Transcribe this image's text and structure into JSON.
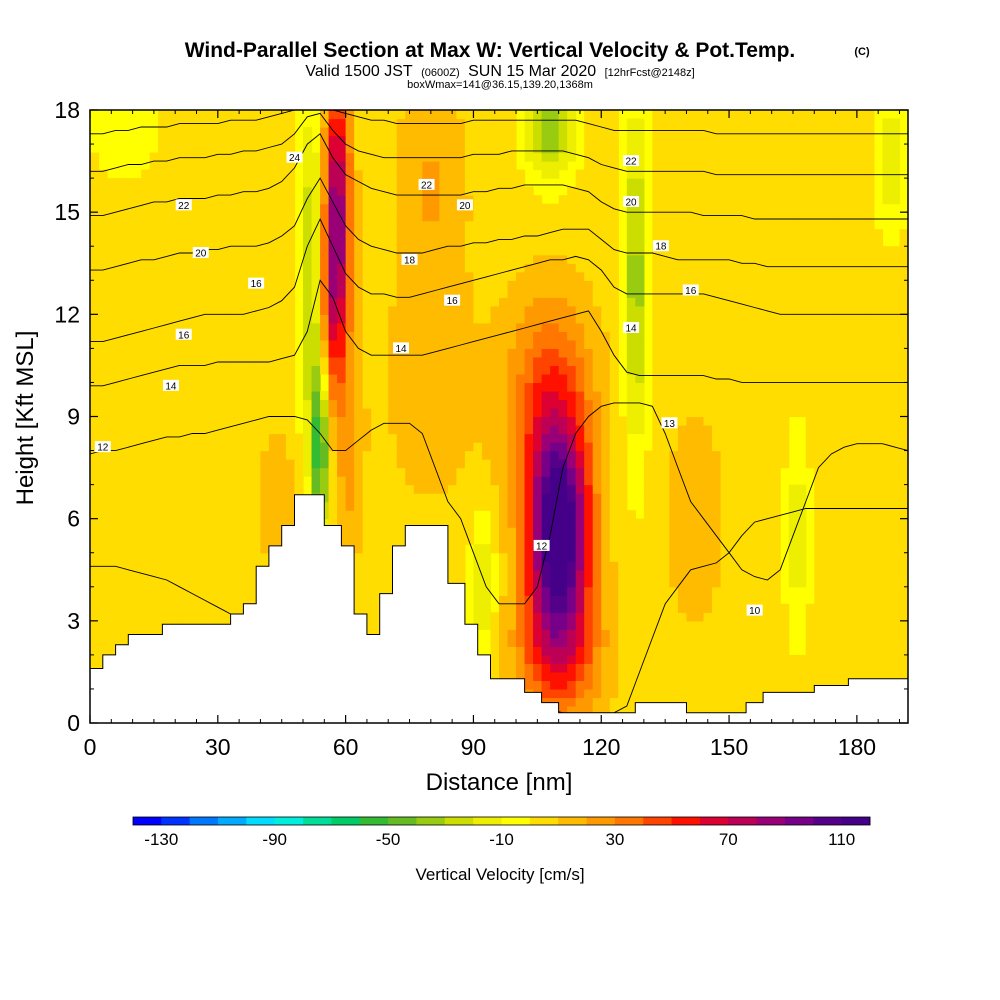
{
  "title": {
    "main": "Wind-Parallel Section at Max W: Vertical Velocity & Pot.Temp.",
    "copyright": "(C)",
    "valid_prefix": "Valid 1500 JST",
    "valid_utc": "(0600Z)",
    "valid_date": "SUN 15 Mar 2020",
    "forecast": "[12hrFcst@2148z]",
    "box_info": "boxWmax=141@36.15,139.20,1368m"
  },
  "chart_data": {
    "type": "heatmap",
    "xlabel": "Distance [nm]",
    "ylabel": "Height [Kft MSL]",
    "xlim": [
      0,
      192
    ],
    "ylim": [
      0,
      18
    ],
    "xticks": [
      "0",
      "30",
      "60",
      "90",
      "120",
      "150",
      "180"
    ],
    "xtick_values": [
      0,
      30,
      60,
      90,
      120,
      150,
      180
    ],
    "yticks": [
      "0",
      "3",
      "6",
      "9",
      "12",
      "15",
      "18"
    ],
    "ytick_values": [
      0,
      3,
      6,
      9,
      12,
      15,
      18
    ],
    "colorbar": {
      "label": "Vertical Velocity [cm/s]",
      "ticks": [
        "-130",
        "-90",
        "-50",
        "-10",
        "30",
        "70",
        "110"
      ],
      "tick_values": [
        -130,
        -90,
        -50,
        -10,
        30,
        70,
        110
      ],
      "min": -140,
      "max": 120,
      "step": 10,
      "colors": [
        "#0000ff",
        "#0033ff",
        "#0077ff",
        "#00aaff",
        "#00ddff",
        "#00eedd",
        "#00dd99",
        "#00cc66",
        "#33bb33",
        "#66bb22",
        "#99cc11",
        "#ccdd00",
        "#eeee00",
        "#ffff00",
        "#ffdd00",
        "#ffbb00",
        "#ff9900",
        "#ff7700",
        "#ff4400",
        "#ff1100",
        "#dd0033",
        "#bb0055",
        "#990077",
        "#770088",
        "#550088",
        "#440088"
      ]
    },
    "vertical_velocity_features": [
      {
        "x": 58,
        "z": 15.5,
        "w": 75,
        "sx": 3,
        "sz": 3.5
      },
      {
        "x": 57,
        "z": 12,
        "w": 45,
        "sx": 3.5,
        "sz": 3
      },
      {
        "x": 61,
        "z": 8,
        "w": 20,
        "sx": 3,
        "sz": 3
      },
      {
        "x": 110,
        "z": 5.5,
        "w": 125,
        "sx": 7,
        "sz": 3
      },
      {
        "x": 108,
        "z": 9.5,
        "w": 40,
        "sx": 10,
        "sz": 3
      },
      {
        "x": 110,
        "z": 2,
        "w": 40,
        "sx": 10,
        "sz": 2
      },
      {
        "x": 52,
        "z": 13,
        "w": -40,
        "sx": 3,
        "sz": 5
      },
      {
        "x": 54,
        "z": 8,
        "w": -60,
        "sx": 2,
        "sz": 2.5
      },
      {
        "x": 128,
        "z": 13,
        "w": -40,
        "sx": 3,
        "sz": 5
      },
      {
        "x": 108,
        "z": 17.5,
        "w": -45,
        "sx": 6,
        "sz": 1.5
      },
      {
        "x": 92,
        "z": 4,
        "w": -28,
        "sx": 3,
        "sz": 2
      },
      {
        "x": 166,
        "z": 5.5,
        "w": -22,
        "sx": 3,
        "sz": 3
      },
      {
        "x": 188,
        "z": 16.5,
        "w": -22,
        "sx": 4,
        "sz": 2
      },
      {
        "x": 8,
        "z": 17.5,
        "w": -15,
        "sx": 8,
        "sz": 1.5
      },
      {
        "x": 142,
        "z": 6,
        "w": 15,
        "sx": 6,
        "sz": 3
      },
      {
        "x": 44,
        "z": 6.5,
        "w": 15,
        "sx": 4,
        "sz": 2
      },
      {
        "x": 80,
        "z": 10,
        "w": 10,
        "sx": 12,
        "sz": 4
      },
      {
        "x": 80,
        "z": 16,
        "w": 15,
        "sx": 8,
        "sz": 3
      }
    ],
    "terrain": {
      "x": [
        0,
        3,
        6,
        9,
        13,
        17,
        21,
        25,
        29,
        33,
        36,
        39,
        42,
        45,
        48,
        51,
        55,
        59,
        62,
        65,
        68,
        71,
        74,
        77,
        80,
        84,
        88,
        91,
        94,
        98,
        102,
        106,
        110,
        114,
        118,
        122,
        128,
        134,
        140,
        146,
        150,
        154,
        158,
        162,
        166,
        170,
        174,
        178,
        182,
        186,
        192
      ],
      "z": [
        1.6,
        2.0,
        2.3,
        2.6,
        2.6,
        2.9,
        2.9,
        2.9,
        2.9,
        3.2,
        3.5,
        4.6,
        5.2,
        5.8,
        6.7,
        6.7,
        5.8,
        5.2,
        3.2,
        2.6,
        3.8,
        5.2,
        5.8,
        5.8,
        5.8,
        4.1,
        2.9,
        2.0,
        1.3,
        1.3,
        0.9,
        0.6,
        0.3,
        0.3,
        0.3,
        0.3,
        0.6,
        0.6,
        0.3,
        0.3,
        0.3,
        0.6,
        0.9,
        0.9,
        0.9,
        1.1,
        1.1,
        1.3,
        1.3,
        1.3,
        1.3
      ]
    },
    "theta_contours": [
      {
        "label": "10",
        "z": [
          4.6,
          4.6,
          4.6,
          4.5,
          4.4,
          4.3,
          4.2,
          4.0,
          3.8,
          3.6,
          3.4,
          3.2,
          3.0,
          2.8,
          2.6,
          2.5,
          2.4,
          2.3,
          2.2,
          2.1,
          2.0,
          1.9,
          1.8,
          1.7,
          1.6,
          1.5,
          1.4,
          1.3,
          1.2,
          1.1,
          1.0,
          0.9,
          0.8,
          0.7,
          0.6,
          0.5,
          0.4,
          0.3,
          0.3,
          0.3,
          0.3,
          0.3,
          0.5,
          1.5,
          2.5,
          3.5,
          4.0,
          4.5,
          4.6,
          4.7,
          5.0,
          5.5,
          5.9,
          6.0,
          6.1,
          6.2,
          6.3,
          6.3,
          6.3,
          6.3,
          6.3,
          6.3,
          6.3,
          6.3,
          6.3
        ]
      },
      {
        "label": "12",
        "z": [
          7.9,
          8.0,
          8.0,
          8.1,
          8.2,
          8.3,
          8.4,
          8.4,
          8.5,
          8.5,
          8.6,
          8.7,
          8.8,
          8.9,
          9.0,
          9.0,
          9.0,
          8.9,
          8.5,
          8.0,
          8.0,
          8.3,
          8.6,
          8.8,
          8.8,
          8.8,
          8.5,
          7.5,
          6.5,
          6.0,
          5.0,
          4.0,
          3.5,
          3.5,
          3.5,
          4.0,
          5.5,
          7.5,
          8.5,
          9.0,
          9.3,
          9.4,
          9.4,
          9.4,
          9.3,
          8.5,
          7.5,
          6.5,
          6.0,
          5.5,
          5.0,
          4.5,
          4.3,
          4.2,
          4.5,
          5.5,
          6.5,
          7.5,
          7.9,
          8.1,
          8.2,
          8.2,
          8.2,
          8.1,
          8.0
        ]
      },
      {
        "label": "14",
        "z": [
          9.9,
          9.9,
          10.0,
          10.1,
          10.2,
          10.3,
          10.4,
          10.5,
          10.5,
          10.5,
          10.6,
          10.6,
          10.6,
          10.6,
          10.6,
          10.7,
          10.8,
          11.5,
          13.0,
          12.5,
          11.5,
          11.0,
          10.8,
          10.8,
          10.8,
          10.8,
          10.8,
          10.9,
          11.0,
          11.1,
          11.2,
          11.3,
          11.4,
          11.5,
          11.6,
          11.7,
          11.8,
          11.9,
          12.0,
          12.1,
          11.5,
          10.8,
          10.3,
          10.2,
          10.2,
          10.2,
          10.2,
          10.2,
          10.2,
          10.1,
          10.1,
          10.0,
          10.0,
          10.0,
          10.0,
          10.0,
          10.0,
          10.0,
          10.0,
          10.0,
          10.0,
          10.0,
          10.0,
          10.0,
          10.0
        ]
      },
      {
        "label": "16",
        "z": [
          11.2,
          11.2,
          11.3,
          11.4,
          11.5,
          11.6,
          11.7,
          11.8,
          11.9,
          12.0,
          12.0,
          12.0,
          12.0,
          12.1,
          12.2,
          12.4,
          12.8,
          14.0,
          14.8,
          14.0,
          13.2,
          12.8,
          12.6,
          12.6,
          12.5,
          12.5,
          12.6,
          12.7,
          12.8,
          12.9,
          13.0,
          13.1,
          13.2,
          13.3,
          13.4,
          13.5,
          13.6,
          13.6,
          13.7,
          13.6,
          13.3,
          12.8,
          12.6,
          12.6,
          12.6,
          12.6,
          12.6,
          12.6,
          12.6,
          12.5,
          12.4,
          12.3,
          12.2,
          12.1,
          12.0,
          12.0,
          12.0,
          12.0,
          12.0,
          12.0,
          12.0,
          12.0,
          12.0,
          12.0,
          12.0
        ]
      },
      {
        "label": "18",
        "z": [
          13.3,
          13.3,
          13.4,
          13.5,
          13.6,
          13.6,
          13.7,
          13.8,
          13.8,
          13.9,
          13.9,
          14.0,
          14.0,
          14.0,
          14.1,
          14.3,
          14.6,
          15.4,
          16.0,
          15.3,
          14.6,
          14.2,
          14.0,
          13.9,
          13.8,
          13.8,
          13.8,
          13.9,
          14.0,
          14.0,
          14.1,
          14.1,
          14.2,
          14.2,
          14.3,
          14.3,
          14.4,
          14.5,
          14.5,
          14.5,
          14.2,
          13.9,
          13.8,
          13.8,
          13.8,
          13.7,
          13.6,
          13.6,
          13.6,
          13.6,
          13.6,
          13.5,
          13.5,
          13.4,
          13.4,
          13.4,
          13.4,
          13.4,
          13.4,
          13.4,
          13.4,
          13.4,
          13.4,
          13.4,
          13.4
        ]
      },
      {
        "label": "20",
        "z": [
          14.9,
          14.9,
          15.0,
          15.1,
          15.2,
          15.3,
          15.3,
          15.4,
          15.4,
          15.4,
          15.5,
          15.5,
          15.6,
          15.6,
          15.7,
          15.9,
          16.3,
          17.0,
          17.3,
          16.6,
          16.1,
          15.9,
          15.7,
          15.6,
          15.5,
          15.5,
          15.5,
          15.5,
          15.5,
          15.5,
          15.6,
          15.6,
          15.7,
          15.7,
          15.8,
          15.8,
          15.8,
          15.8,
          15.7,
          15.6,
          15.3,
          15.1,
          15.0,
          15.0,
          15.0,
          15.0,
          15.0,
          15.0,
          14.9,
          14.9,
          14.9,
          14.9,
          14.8,
          14.8,
          14.8,
          14.8,
          14.8,
          14.8,
          14.8,
          14.8,
          14.8,
          14.8,
          14.8,
          14.8,
          14.8
        ]
      },
      {
        "label": "22",
        "z": [
          16.2,
          16.2,
          16.3,
          16.4,
          16.4,
          16.5,
          16.5,
          16.6,
          16.6,
          16.6,
          16.7,
          16.7,
          16.8,
          16.8,
          16.9,
          17.0,
          17.3,
          17.8,
          17.9,
          17.4,
          17.0,
          16.8,
          16.7,
          16.6,
          16.6,
          16.6,
          16.6,
          16.6,
          16.6,
          16.6,
          16.7,
          16.7,
          16.7,
          16.8,
          16.8,
          16.8,
          16.8,
          16.8,
          16.7,
          16.6,
          16.4,
          16.3,
          16.2,
          16.2,
          16.2,
          16.2,
          16.2,
          16.2,
          16.2,
          16.1,
          16.1,
          16.1,
          16.1,
          16.1,
          16.1,
          16.1,
          16.1,
          16.1,
          16.1,
          16.1,
          16.1,
          16.1,
          16.1,
          16.1,
          16.1
        ]
      },
      {
        "label": "24",
        "z": [
          17.3,
          17.3,
          17.4,
          17.4,
          17.5,
          17.5,
          17.5,
          17.6,
          17.6,
          17.6,
          17.6,
          17.7,
          17.7,
          17.7,
          17.8,
          17.9,
          18.0,
          18.0,
          18.0,
          18.0,
          17.9,
          17.8,
          17.7,
          17.7,
          17.6,
          17.6,
          17.6,
          17.6,
          17.6,
          17.6,
          17.7,
          17.7,
          17.7,
          17.7,
          17.7,
          17.7,
          17.7,
          17.7,
          17.7,
          17.6,
          17.5,
          17.4,
          17.4,
          17.4,
          17.4,
          17.4,
          17.4,
          17.4,
          17.4,
          17.3,
          17.3,
          17.3,
          17.3,
          17.3,
          17.3,
          17.3,
          17.3,
          17.3,
          17.3,
          17.3,
          17.3,
          17.3,
          17.3,
          17.3,
          17.3
        ]
      }
    ],
    "contour_x_step": 3,
    "contour_labels": [
      {
        "text": "24",
        "x": 48,
        "z": 16.6
      },
      {
        "text": "22",
        "x": 22,
        "z": 15.2
      },
      {
        "text": "20",
        "x": 26,
        "z": 13.8
      },
      {
        "text": "16",
        "x": 39,
        "z": 12.9
      },
      {
        "text": "16",
        "x": 22,
        "z": 11.4
      },
      {
        "text": "14",
        "x": 19,
        "z": 9.9
      },
      {
        "text": "12",
        "x": 3,
        "z": 8.1
      },
      {
        "text": "22",
        "x": 79,
        "z": 15.8
      },
      {
        "text": "20",
        "x": 88,
        "z": 15.2
      },
      {
        "text": "18",
        "x": 75,
        "z": 13.6
      },
      {
        "text": "16",
        "x": 85,
        "z": 12.4
      },
      {
        "text": "14",
        "x": 73,
        "z": 11.0
      },
      {
        "text": "22",
        "x": 127,
        "z": 16.5
      },
      {
        "text": "20",
        "x": 127,
        "z": 15.3
      },
      {
        "text": "18",
        "x": 134,
        "z": 14.0
      },
      {
        "text": "16",
        "x": 141,
        "z": 12.7
      },
      {
        "text": "14",
        "x": 127,
        "z": 11.6
      },
      {
        "text": "13",
        "x": 136,
        "z": 8.8
      },
      {
        "text": "12",
        "x": 106,
        "z": 5.2
      },
      {
        "text": "10",
        "x": 156,
        "z": 3.3
      }
    ]
  }
}
